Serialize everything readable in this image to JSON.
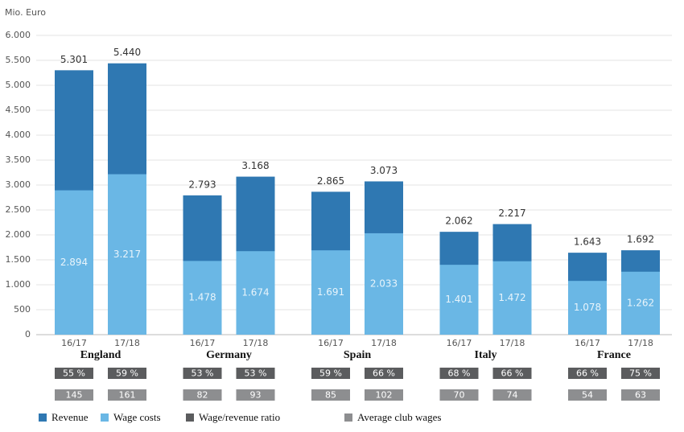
{
  "chart_data": {
    "type": "bar",
    "y_axis_label": "Mio. Euro",
    "groups": [
      "England",
      "Germany",
      "Spain",
      "Italy",
      "France"
    ],
    "categories": [
      "16/17",
      "17/18",
      "16/17",
      "17/18",
      "16/17",
      "17/18",
      "16/17",
      "17/18",
      "16/17",
      "17/18"
    ],
    "ylim": [
      0,
      6000
    ],
    "yticks": [
      0,
      500,
      {
        "value": 1000,
        "label": "1.000"
      },
      {
        "value": 1500,
        "label": "1.500"
      },
      {
        "value": 2000,
        "label": "2.000"
      },
      {
        "value": 2500,
        "label": "2.500"
      },
      {
        "value": 3000,
        "label": "3.000"
      },
      {
        "value": 3500,
        "label": "3.500"
      },
      {
        "value": 4000,
        "label": "4.000"
      },
      {
        "value": 4500,
        "label": "4.500"
      },
      {
        "value": 5000,
        "label": "5.000"
      },
      {
        "value": 5500,
        "label": "5.500"
      },
      {
        "value": 6000,
        "label": "6.000"
      }
    ],
    "grid": true,
    "series": [
      {
        "name": "Revenue",
        "color": "#2f78b2",
        "values": [
          5301,
          5440,
          2793,
          3168,
          2865,
          3073,
          2062,
          2217,
          1643,
          1692
        ],
        "value_labels": [
          "5.301",
          "5.440",
          "2.793",
          "3.168",
          "2.865",
          "3.073",
          "2.062",
          "2.217",
          "1.643",
          "1.692"
        ]
      },
      {
        "name": "Wage costs",
        "color": "#6ab7e5",
        "values": [
          2894,
          3217,
          1478,
          1674,
          1691,
          2033,
          1401,
          1472,
          1078,
          1262
        ],
        "value_labels": [
          "2.894",
          "3.217",
          "1.478",
          "1.674",
          "1.691",
          "2.033",
          "1.401",
          "1.472",
          "1.078",
          "1.262"
        ]
      },
      {
        "name": "Wage/revenue ratio",
        "color": "#5b5c5e",
        "values": [
          55,
          59,
          53,
          53,
          59,
          66,
          68,
          66,
          66,
          75
        ],
        "value_labels": [
          "55 %",
          "59 %",
          "53 %",
          "53 %",
          "59 %",
          "66 %",
          "68 %",
          "66 %",
          "66 %",
          "75 %"
        ]
      },
      {
        "name": "Average club wages",
        "color": "#8d8e90",
        "values": [
          145,
          161,
          82,
          93,
          85,
          102,
          70,
          74,
          54,
          63
        ]
      }
    ]
  }
}
